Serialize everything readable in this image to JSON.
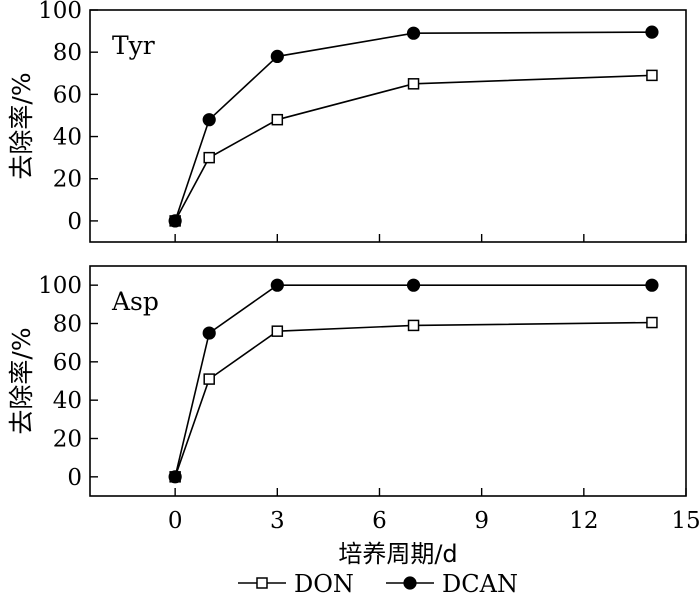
{
  "chart_data": [
    {
      "type": "line",
      "panel_label": "Tyr",
      "ylabel": "去除率/%",
      "xlabel": "",
      "xlim": [
        -2.5,
        15
      ],
      "ylim": [
        -10,
        100
      ],
      "xticks": [
        0,
        3,
        6,
        9,
        12,
        15
      ],
      "yticks": [
        0,
        20,
        40,
        60,
        80,
        100
      ],
      "x_tick_labels_shown": false,
      "series": [
        {
          "name": "DON",
          "marker": "open-square",
          "x": [
            0,
            1,
            3,
            7,
            14
          ],
          "y": [
            0,
            30,
            48,
            65,
            69
          ]
        },
        {
          "name": "DCAN",
          "marker": "filled-circle",
          "x": [
            0,
            1,
            3,
            7,
            14
          ],
          "y": [
            0,
            48,
            78,
            89,
            89.5
          ]
        }
      ]
    },
    {
      "type": "line",
      "panel_label": "Asp",
      "ylabel": "去除率/%",
      "xlabel": "培养周期/d",
      "xlim": [
        -2.5,
        15
      ],
      "ylim": [
        -10,
        110
      ],
      "xticks": [
        0,
        3,
        6,
        9,
        12,
        15
      ],
      "yticks": [
        0,
        20,
        40,
        60,
        80,
        100
      ],
      "x_tick_labels_shown": true,
      "series": [
        {
          "name": "DON",
          "marker": "open-square",
          "x": [
            0,
            1,
            3,
            7,
            14
          ],
          "y": [
            0,
            51,
            76,
            79,
            80.5
          ]
        },
        {
          "name": "DCAN",
          "marker": "filled-circle",
          "x": [
            0,
            1,
            3,
            7,
            14
          ],
          "y": [
            0,
            75,
            100,
            100,
            100
          ]
        }
      ]
    }
  ],
  "legend": {
    "placement": "bottom-center",
    "entries": [
      {
        "label": "DON",
        "marker": "open-square"
      },
      {
        "label": "DCAN",
        "marker": "filled-circle"
      }
    ]
  }
}
